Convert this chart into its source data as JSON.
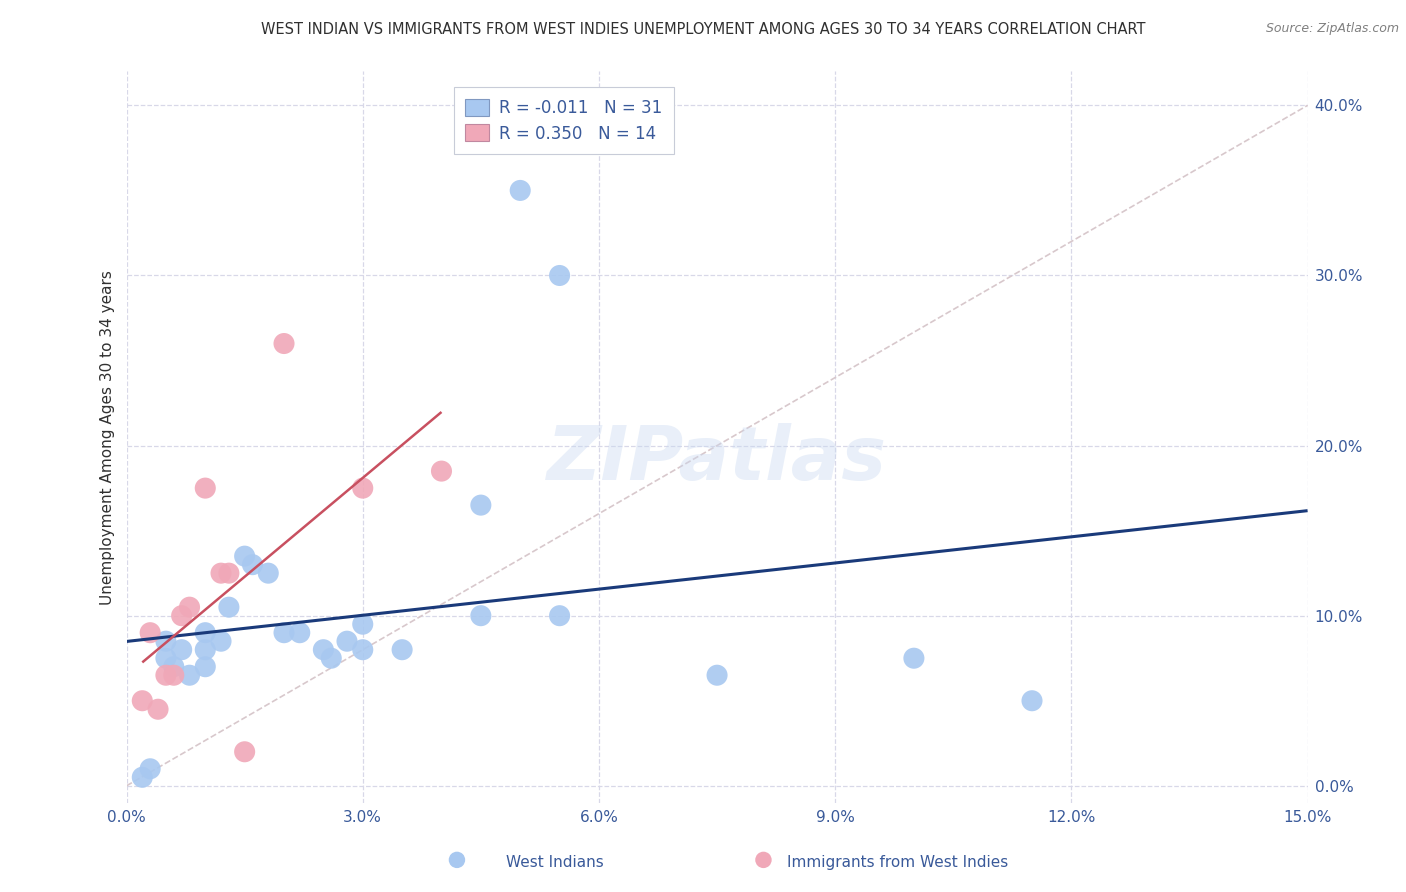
{
  "title": "WEST INDIAN VS IMMIGRANTS FROM WEST INDIES UNEMPLOYMENT AMONG AGES 30 TO 34 YEARS CORRELATION CHART",
  "source": "Source: ZipAtlas.com",
  "ylabel_label": "Unemployment Among Ages 30 to 34 years",
  "xlim": [
    0.0,
    15.0
  ],
  "ylim": [
    -1.0,
    42.0
  ],
  "xtick_vals": [
    0.0,
    3.0,
    6.0,
    9.0,
    12.0,
    15.0
  ],
  "ytick_vals": [
    0.0,
    10.0,
    20.0,
    30.0,
    40.0
  ],
  "watermark_text": "ZIPatlas",
  "legend_blue_r": "-0.011",
  "legend_blue_n": "31",
  "legend_pink_r": "0.350",
  "legend_pink_n": "14",
  "blue_color": "#a8c8f0",
  "pink_color": "#f0a8b8",
  "blue_line_color": "#1a3a7a",
  "pink_line_color": "#c85060",
  "diag_line_color": "#d8c8cc",
  "blue_scatter": [
    [
      0.2,
      0.5
    ],
    [
      0.3,
      1.0
    ],
    [
      0.5,
      7.5
    ],
    [
      0.5,
      8.5
    ],
    [
      0.6,
      7.0
    ],
    [
      0.7,
      8.0
    ],
    [
      0.8,
      6.5
    ],
    [
      1.0,
      7.0
    ],
    [
      1.0,
      9.0
    ],
    [
      1.0,
      8.0
    ],
    [
      1.2,
      8.5
    ],
    [
      1.3,
      10.5
    ],
    [
      1.5,
      13.5
    ],
    [
      1.6,
      13.0
    ],
    [
      1.8,
      12.5
    ],
    [
      2.0,
      9.0
    ],
    [
      2.2,
      9.0
    ],
    [
      2.5,
      8.0
    ],
    [
      2.6,
      7.5
    ],
    [
      2.8,
      8.5
    ],
    [
      3.0,
      9.5
    ],
    [
      3.0,
      8.0
    ],
    [
      3.5,
      8.0
    ],
    [
      4.5,
      16.5
    ],
    [
      4.5,
      10.0
    ],
    [
      5.0,
      35.0
    ],
    [
      5.5,
      30.0
    ],
    [
      5.5,
      10.0
    ],
    [
      7.5,
      6.5
    ],
    [
      10.0,
      7.5
    ],
    [
      11.5,
      5.0
    ]
  ],
  "pink_scatter": [
    [
      0.2,
      5.0
    ],
    [
      0.3,
      9.0
    ],
    [
      0.5,
      6.5
    ],
    [
      0.6,
      6.5
    ],
    [
      0.7,
      10.0
    ],
    [
      0.8,
      10.5
    ],
    [
      1.0,
      17.5
    ],
    [
      1.2,
      12.5
    ],
    [
      1.3,
      12.5
    ],
    [
      1.5,
      2.0
    ],
    [
      2.0,
      26.0
    ],
    [
      3.0,
      17.5
    ],
    [
      4.0,
      18.5
    ],
    [
      0.4,
      4.5
    ]
  ],
  "background_color": "#ffffff",
  "grid_color": "#d8d8e8",
  "title_color": "#303030",
  "source_color": "#808080",
  "axis_color": "#3a5a9a",
  "legend_r_blue": "#2060c0",
  "legend_r_pink": "#c04060",
  "legend_n_color": "#2060c0"
}
